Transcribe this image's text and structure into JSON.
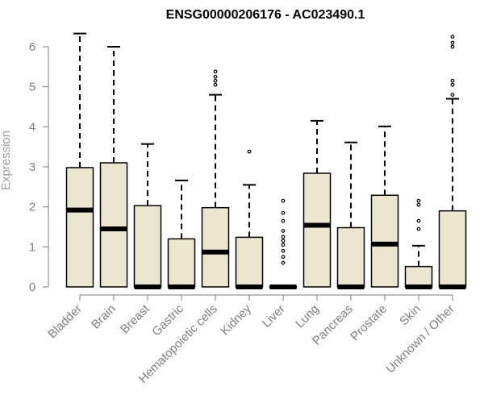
{
  "chart_data": {
    "type": "box",
    "title": "ENSG00000206176 - AC023490.1",
    "xlabel": "",
    "ylabel": "Expression",
    "ylim": [
      0,
      6.3
    ],
    "yticks": [
      "0",
      "1",
      "2",
      "3",
      "4",
      "5",
      "6"
    ],
    "grid": false,
    "legend": "none",
    "colors": {
      "box_fill": "#ede6cf",
      "box_stroke": "#000000",
      "axis": "#7f7f7f",
      "tick_label": "#7f7f7f"
    },
    "categories": [
      "Bladder",
      "Brain",
      "Breast",
      "Gastric",
      "Hematopoietic cells",
      "Kidney",
      "Liver",
      "Lung",
      "Pancreas",
      "Prostate",
      "Skin",
      "Unknown / Other"
    ],
    "boxes": [
      {
        "q1": 0,
        "median": 1.92,
        "q3": 2.98,
        "whisker_low": 0,
        "whisker_high": 6.33,
        "outliers": []
      },
      {
        "q1": 0,
        "median": 1.45,
        "q3": 3.1,
        "whisker_low": 0,
        "whisker_high": 6.0,
        "outliers": []
      },
      {
        "q1": 0,
        "median": 0,
        "q3": 2.03,
        "whisker_low": 0,
        "whisker_high": 3.57,
        "outliers": []
      },
      {
        "q1": 0,
        "median": 0,
        "q3": 1.2,
        "whisker_low": 0,
        "whisker_high": 2.66,
        "outliers": []
      },
      {
        "q1": 0,
        "median": 0.87,
        "q3": 1.98,
        "whisker_low": 0,
        "whisker_high": 4.8,
        "outliers": [
          5.05,
          5.15,
          5.25,
          5.38
        ]
      },
      {
        "q1": 0,
        "median": 0,
        "q3": 1.24,
        "whisker_low": 0,
        "whisker_high": 2.55,
        "outliers": [
          3.38
        ]
      },
      {
        "q1": 0,
        "median": 0,
        "q3": 0,
        "whisker_low": 0,
        "whisker_high": 0,
        "outliers": [
          0.6,
          0.75,
          0.9,
          1.05,
          1.15,
          1.25,
          1.4,
          1.65,
          1.85,
          2.15
        ]
      },
      {
        "q1": 0,
        "median": 1.54,
        "q3": 2.84,
        "whisker_low": 0,
        "whisker_high": 4.15,
        "outliers": []
      },
      {
        "q1": 0,
        "median": 0,
        "q3": 1.48,
        "whisker_low": 0,
        "whisker_high": 3.61,
        "outliers": []
      },
      {
        "q1": 0,
        "median": 1.07,
        "q3": 2.29,
        "whisker_low": 0,
        "whisker_high": 4.01,
        "outliers": []
      },
      {
        "q1": 0,
        "median": 0,
        "q3": 0.51,
        "whisker_low": 0,
        "whisker_high": 1.03,
        "outliers": [
          1.45,
          1.65,
          2.05,
          2.15
        ]
      },
      {
        "q1": 0,
        "median": 0,
        "q3": 1.9,
        "whisker_low": 0,
        "whisker_high": 4.7,
        "outliers": [
          4.8,
          5.05,
          5.15,
          6.0,
          6.1,
          6.25
        ]
      }
    ]
  }
}
